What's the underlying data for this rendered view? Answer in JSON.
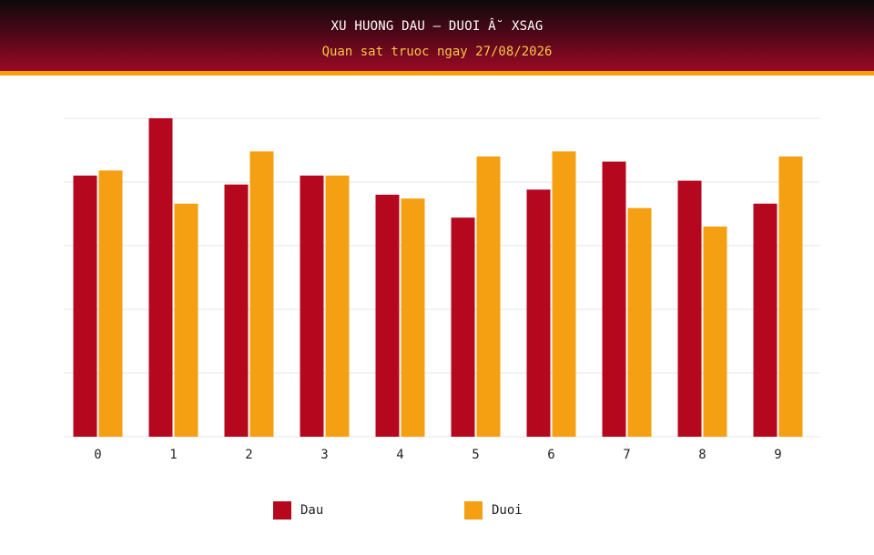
{
  "header": {
    "title": "XU HUONG DAU – DUOI Â˘ XSAG",
    "subtitle": "Quan sat truoc ngay 27/08/2026"
  },
  "colors": {
    "dau": "#b5081f",
    "duoi": "#f4a012",
    "grid": "#e6e6e6"
  },
  "chart_data": {
    "type": "bar",
    "categories": [
      "0",
      "1",
      "2",
      "3",
      "4",
      "5",
      "6",
      "7",
      "8",
      "9"
    ],
    "series": [
      {
        "name": "Dau",
        "values": [
          41,
          50,
          39.6,
          41,
          38,
          34.4,
          38.8,
          43.2,
          40.2,
          36.6
        ]
      },
      {
        "name": "Duoi",
        "values": [
          41.8,
          36.6,
          44.8,
          41,
          37.4,
          44,
          44.8,
          35.9,
          33,
          44
        ]
      }
    ],
    "ylim": [
      0,
      50
    ],
    "grid": true,
    "legend_position": "bottom"
  },
  "legend": {
    "items": [
      {
        "label": "Dau"
      },
      {
        "label": "Duoi"
      }
    ]
  }
}
